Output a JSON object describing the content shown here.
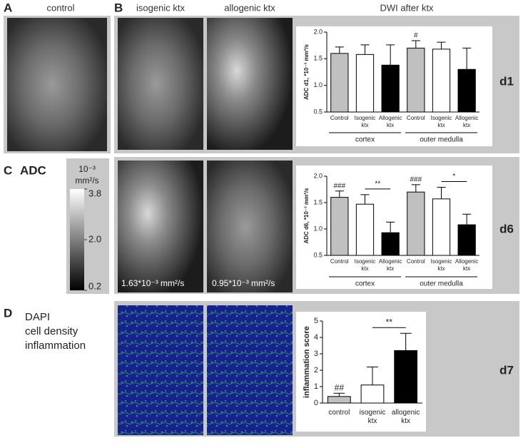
{
  "figure": {
    "panel_a": {
      "label": "A",
      "title": "control"
    },
    "panel_b": {
      "label": "B",
      "columns": [
        "isogenic ktx",
        "allogenic ktx",
        "DWI after ktx"
      ]
    },
    "panel_c": {
      "label": "C",
      "title": "ADC",
      "colorbar": {
        "unit_base": "10⁻³",
        "unit": "mm²/s",
        "lim": [
          0.2,
          3.8
        ],
        "ticks": [
          3.8,
          {
            "value": 2,
            "label": "2.0"
          },
          0.2
        ]
      },
      "image_labels": [
        "1.63*10⁻³ mm²/s",
        "0.95*10⁻³ mm²/s"
      ]
    },
    "panel_d": {
      "label": "D",
      "lines": [
        "DAPI",
        "cell density",
        "inflammation"
      ]
    },
    "rows": [
      "d1",
      "d6",
      "d7"
    ]
  },
  "chart_data": [
    {
      "type": "bar",
      "ylabel": "ADC d1, *10⁻³ mm²/s",
      "categories": [
        "Control",
        "Isogenic ktx",
        "Allogenic ktx",
        "Control",
        "Isogenic ktx",
        "Allogenic ktx"
      ],
      "groups": [
        "cortex",
        "outer medulla"
      ],
      "values": [
        1.6,
        1.58,
        1.38,
        1.7,
        1.68,
        1.3
      ],
      "errors": [
        0.12,
        0.18,
        0.38,
        0.14,
        0.13,
        0.4
      ],
      "colors": [
        "#c0c0c0",
        "#ffffff",
        "#000000",
        "#c0c0c0",
        "#ffffff",
        "#000000"
      ],
      "ylim": [
        0.5,
        2.0
      ],
      "yticks": [
        0.5,
        {
          "value": 1,
          "label": "1.0"
        },
        1.5,
        {
          "value": 2,
          "label": "2.0"
        }
      ],
      "annotations": [
        {
          "text": "#",
          "at": 3
        }
      ]
    },
    {
      "type": "bar",
      "ylabel": "ADC d6, *10⁻³ mm²/s",
      "categories": [
        "Control",
        "Isogenic ktx",
        "Allogenic ktx",
        "Control",
        "Isogenic ktx",
        "Allogenic ktx"
      ],
      "groups": [
        "cortex",
        "outer medulla"
      ],
      "values": [
        1.6,
        1.47,
        0.93,
        1.7,
        1.57,
        1.08
      ],
      "errors": [
        0.12,
        0.18,
        0.2,
        0.14,
        0.22,
        0.2
      ],
      "colors": [
        "#c0c0c0",
        "#ffffff",
        "#000000",
        "#c0c0c0",
        "#ffffff",
        "#000000"
      ],
      "ylim": [
        0.5,
        2.0
      ],
      "yticks": [
        0.5,
        {
          "value": 1,
          "label": "1.0"
        },
        1.5,
        {
          "value": 2,
          "label": "2.0"
        }
      ],
      "annotations": [
        {
          "text": "###",
          "at": 0
        },
        {
          "text": "**",
          "from": 1,
          "to": 2
        },
        {
          "text": "###",
          "at": 3
        },
        {
          "text": "*",
          "from": 4,
          "to": 5
        }
      ]
    },
    {
      "type": "bar",
      "ylabel": "inflammation score",
      "categories": [
        "control",
        "isogenic ktx",
        "allogenic ktx"
      ],
      "values": [
        0.4,
        1.1,
        3.2
      ],
      "errors": [
        0.2,
        1.1,
        1.05
      ],
      "colors": [
        "#c0c0c0",
        "#ffffff",
        "#000000"
      ],
      "ylim": [
        0,
        5
      ],
      "yticks": [
        0,
        1,
        2,
        3,
        4,
        5
      ],
      "annotations": [
        {
          "text": "##",
          "at": 0
        },
        {
          "text": "**",
          "from": 1,
          "to": 2
        }
      ]
    }
  ]
}
